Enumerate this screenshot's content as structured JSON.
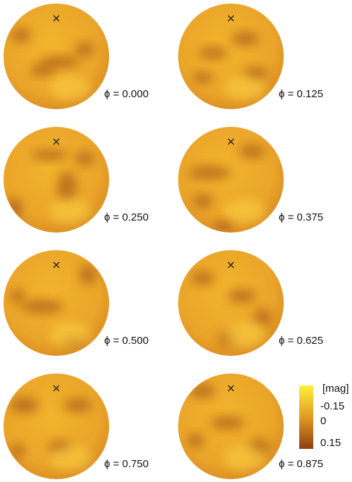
{
  "panels": [
    {
      "label": "ϕ = 0.000"
    },
    {
      "label": "ϕ = 0.125"
    },
    {
      "label": "ϕ = 0.250"
    },
    {
      "label": "ϕ = 0.375"
    },
    {
      "label": "ϕ = 0.500"
    },
    {
      "label": "ϕ = 0.625"
    },
    {
      "label": "ϕ = 0.750"
    },
    {
      "label": "ϕ = 0.875"
    }
  ],
  "colorbar": {
    "title": "[mag]",
    "ticks": [
      "-0.15",
      "0",
      "0.15"
    ]
  }
}
